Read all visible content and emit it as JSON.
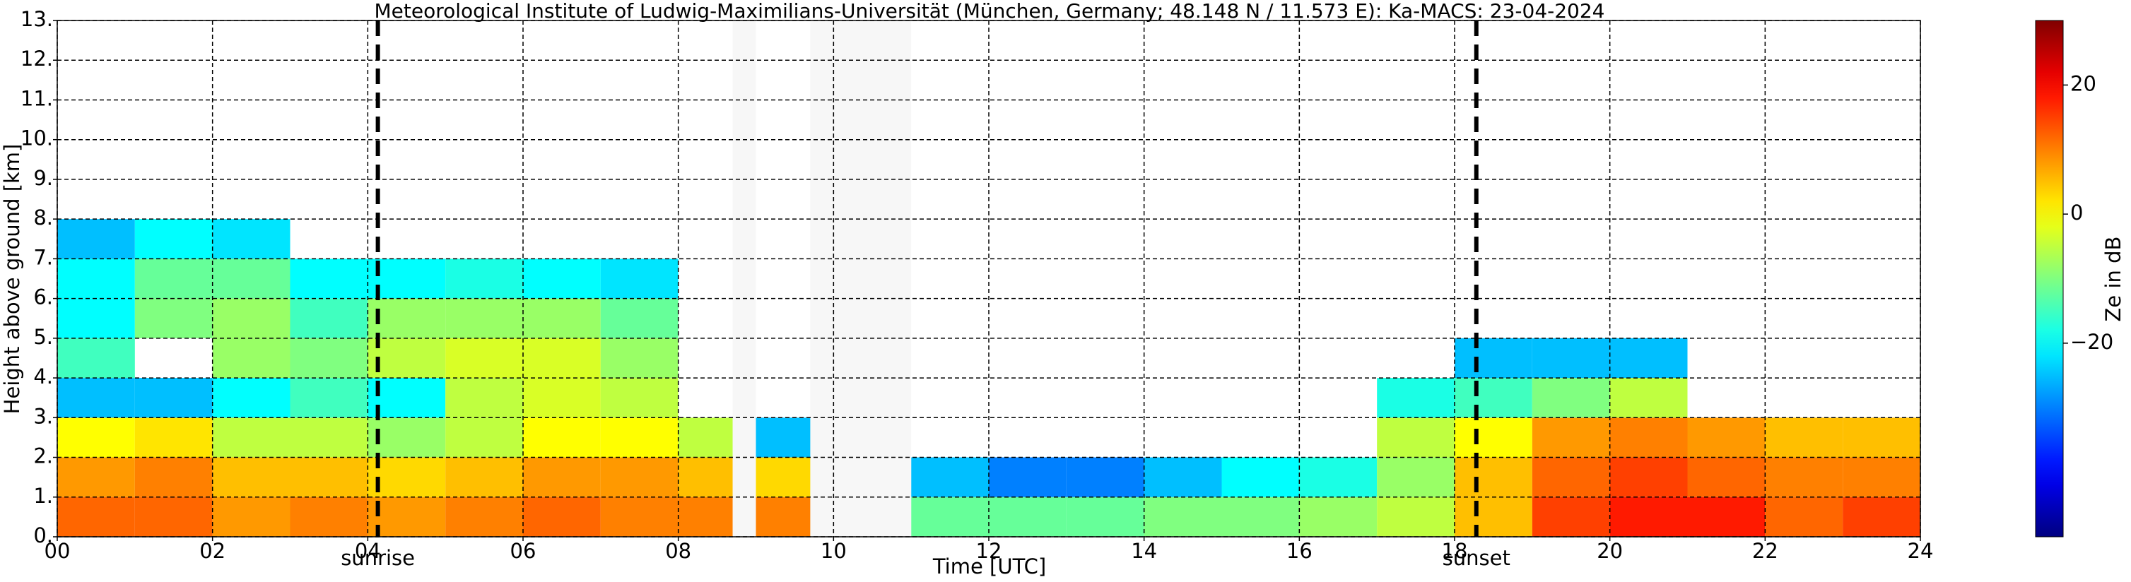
{
  "chart_data": {
    "type": "heatmap",
    "title": "Meteorological Institute of Ludwig-Maximilians-Universität (München, Germany; 48.148 N / 11.573 E):    Ka-MACS: 23-04-2024",
    "xlabel": "Time [UTC]",
    "ylabel": "Height above ground [km]",
    "xlim": [
      0,
      24
    ],
    "xticks": [
      {
        "value": 0,
        "label": "00"
      },
      {
        "value": 2,
        "label": "02"
      },
      {
        "value": 4,
        "label": "04"
      },
      {
        "value": 6,
        "label": "06"
      },
      {
        "value": 8,
        "label": "08"
      },
      10,
      12,
      14,
      16,
      18,
      20,
      22,
      24
    ],
    "ylim": [
      0,
      13
    ],
    "yticks": [
      {
        "value": 0,
        "label": "0."
      },
      {
        "value": 1,
        "label": "1."
      },
      {
        "value": 2,
        "label": "2."
      },
      {
        "value": 3,
        "label": "3."
      },
      {
        "value": 4,
        "label": "4."
      },
      {
        "value": 5,
        "label": "5."
      },
      {
        "value": 6,
        "label": "6."
      },
      {
        "value": 7,
        "label": "7."
      },
      {
        "value": 8,
        "label": "8."
      },
      {
        "value": 9,
        "label": "9."
      },
      {
        "value": 10,
        "label": "10."
      },
      {
        "value": 11,
        "label": "11."
      },
      {
        "value": 12,
        "label": "12."
      },
      {
        "value": 13,
        "label": "13."
      }
    ],
    "grid": true,
    "x": [
      0,
      1,
      2,
      3,
      4,
      5,
      6,
      7,
      8,
      9,
      10,
      11,
      12,
      13,
      14,
      15,
      16,
      17,
      18,
      19,
      20,
      21,
      22,
      23,
      24
    ],
    "y": [
      0,
      1,
      2,
      3,
      4,
      5,
      6,
      7,
      8
    ],
    "z": [
      [
        12,
        8,
        0,
        -25,
        -15,
        -20,
        -20,
        -25
      ],
      [
        12,
        10,
        2,
        -25,
        null,
        -10,
        -12,
        -20
      ],
      [
        8,
        5,
        -5,
        -20,
        -8,
        -8,
        -12,
        -22
      ],
      [
        10,
        5,
        -5,
        -15,
        -10,
        -15,
        -20,
        null
      ],
      [
        8,
        3,
        -8,
        -20,
        -5,
        -8,
        -20,
        null
      ],
      [
        10,
        5,
        -5,
        -5,
        -3,
        -8,
        -18,
        null
      ],
      [
        12,
        8,
        0,
        -3,
        -3,
        -8,
        -20,
        null
      ],
      [
        10,
        8,
        0,
        -5,
        -8,
        -12,
        -22,
        null
      ],
      [
        10,
        5,
        -5,
        null,
        null,
        null,
        null,
        null
      ],
      [
        10,
        3,
        -25,
        null,
        null,
        null,
        null,
        null
      ],
      [
        null,
        null,
        null,
        null,
        null,
        null,
        null,
        null
      ],
      [
        -12,
        -25,
        null,
        null,
        null,
        null,
        null,
        null
      ],
      [
        -12,
        -30,
        null,
        null,
        null,
        null,
        null,
        null
      ],
      [
        -12,
        -30,
        null,
        null,
        null,
        null,
        null,
        null
      ],
      [
        -10,
        -25,
        null,
        null,
        null,
        null,
        null,
        null
      ],
      [
        -10,
        -20,
        null,
        null,
        null,
        null,
        null,
        null
      ],
      [
        -8,
        -18,
        null,
        null,
        null,
        null,
        null,
        null
      ],
      [
        -5,
        -8,
        -5,
        -18,
        null,
        null,
        null,
        null
      ],
      [
        5,
        5,
        0,
        -15,
        -25,
        null,
        null,
        null
      ],
      [
        15,
        12,
        8,
        -10,
        -25,
        null,
        null,
        null
      ],
      [
        18,
        15,
        10,
        -5,
        -25,
        null,
        null,
        null
      ],
      [
        18,
        12,
        8,
        null,
        null,
        null,
        null,
        null
      ],
      [
        12,
        10,
        5,
        null,
        null,
        null,
        null,
        null
      ],
      [
        15,
        10,
        5,
        null,
        null,
        null,
        null,
        null
      ]
    ],
    "gaps": [
      [
        8.7,
        9.0
      ],
      [
        9.7,
        11.0
      ]
    ],
    "gap_color": "#f7f7f7",
    "annotations": [
      {
        "x": 4.13,
        "text": "sunrise"
      },
      {
        "x": 18.28,
        "text": "sunset"
      }
    ],
    "colorbar": {
      "label": "Ze in dB",
      "lim": [
        -50,
        30
      ],
      "ticks": [
        {
          "value": -20,
          "label": "−20"
        },
        0,
        20
      ],
      "colormap": "jet"
    }
  }
}
